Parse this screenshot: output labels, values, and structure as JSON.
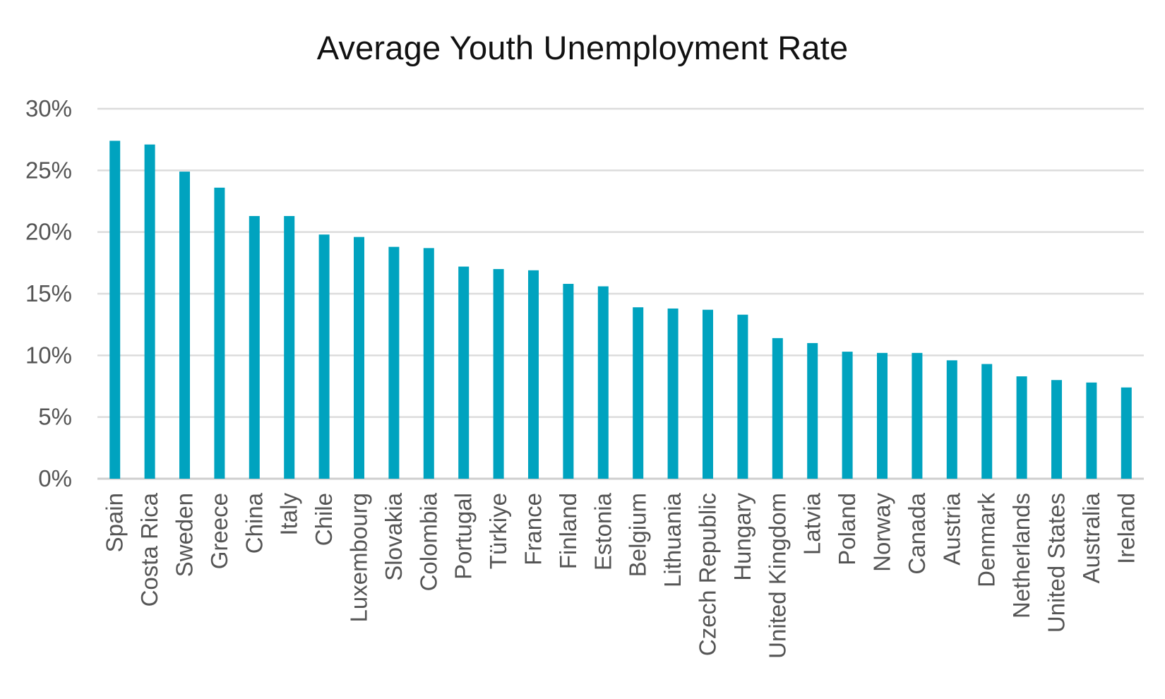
{
  "chart_data": {
    "type": "bar",
    "title": "Average Youth Unemployment Rate",
    "xlabel": "",
    "ylabel": "",
    "ylim": [
      0,
      30
    ],
    "yticks": [
      "0%",
      "5%",
      "10%",
      "15%",
      "20%",
      "25%",
      "30%"
    ],
    "grid": true,
    "bar_color": "#00A3BF",
    "categories": [
      "Spain",
      "Costa Rica",
      "Sweden",
      "Greece",
      "China",
      "Italy",
      "Chile",
      "Luxembourg",
      "Slovakia",
      "Colombia",
      "Portugal",
      "Türkiye",
      "France",
      "Finland",
      "Estonia",
      "Belgium",
      "Lithuania",
      "Czech Republic",
      "Hungary",
      "United Kingdom",
      "Latvia",
      "Poland",
      "Norway",
      "Canada",
      "Austria",
      "Denmark",
      "Netherlands",
      "United States",
      "Australia",
      "Ireland"
    ],
    "values": [
      27.4,
      27.1,
      24.9,
      23.6,
      21.3,
      21.3,
      19.8,
      19.6,
      18.8,
      18.7,
      17.2,
      17.0,
      16.9,
      15.8,
      15.6,
      13.9,
      13.8,
      13.7,
      13.3,
      11.4,
      11.0,
      10.3,
      10.2,
      10.2,
      9.6,
      9.3,
      8.3,
      8.0,
      7.8,
      7.4
    ]
  }
}
